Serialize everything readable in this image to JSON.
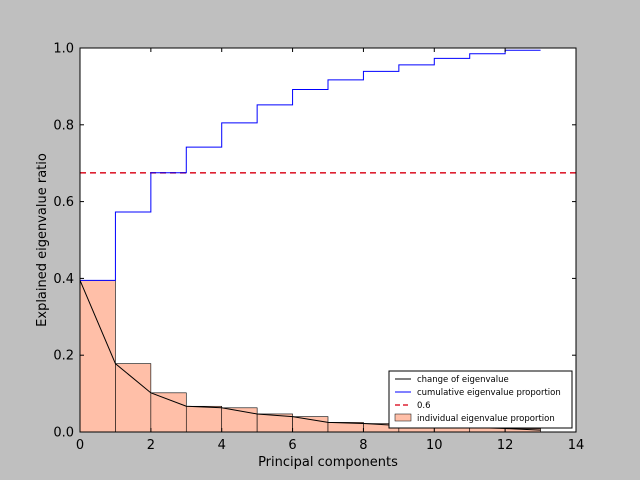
{
  "chart_data": {
    "type": "bar",
    "xlabel": "Principal components",
    "ylabel": "Explained eigenvalue ratio",
    "xlim": [
      0,
      14
    ],
    "ylim": [
      0,
      1.0
    ],
    "x_ticks": [
      "0",
      "2",
      "4",
      "6",
      "8",
      "10",
      "12",
      "14"
    ],
    "y_ticks": [
      "0.0",
      "0.2",
      "0.4",
      "0.6",
      "0.8",
      "1.0"
    ],
    "grid": false,
    "legend_position": "lower-right",
    "bars": {
      "name": "individual eigenvalue proportion",
      "color": "#ffbfa8",
      "x": [
        0,
        1,
        2,
        3,
        4,
        5,
        6,
        7,
        8,
        9,
        10,
        11,
        12
      ],
      "values": [
        0.395,
        0.178,
        0.102,
        0.067,
        0.063,
        0.047,
        0.04,
        0.025,
        0.022,
        0.017,
        0.017,
        0.012,
        0.009
      ]
    },
    "change_line": {
      "name": "change of eigenvalue",
      "color": "#000000",
      "x": [
        0,
        1,
        2,
        3,
        4,
        5,
        6,
        7,
        8,
        9,
        10,
        11,
        12,
        13
      ],
      "values": [
        0.395,
        0.178,
        0.102,
        0.067,
        0.063,
        0.047,
        0.04,
        0.025,
        0.022,
        0.017,
        0.017,
        0.012,
        0.009,
        0.005
      ]
    },
    "cumulative_step": {
      "name": "cumulative eigenvalue proportion",
      "color": "#0000ff",
      "x": [
        0,
        1,
        2,
        3,
        4,
        5,
        6,
        7,
        8,
        9,
        10,
        11,
        12,
        13
      ],
      "values": [
        0.395,
        0.573,
        0.675,
        0.742,
        0.805,
        0.852,
        0.892,
        0.917,
        0.939,
        0.956,
        0.973,
        0.985,
        0.994,
        0.994
      ]
    },
    "threshold": {
      "name": "0.6",
      "color": "#dd2233",
      "y": 0.675
    }
  }
}
